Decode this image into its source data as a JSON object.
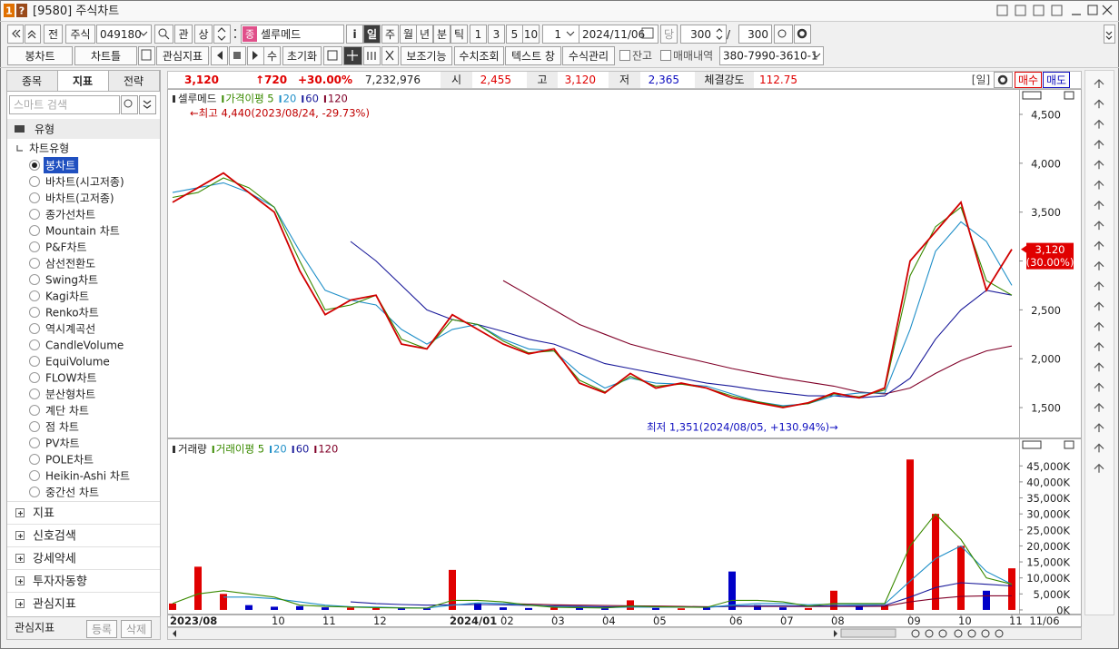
{
  "window": {
    "title": "[9580] 주식차트",
    "badges": [
      "1",
      "?"
    ]
  },
  "toolbar1": {
    "prev": "전",
    "market": "주식",
    "code": "049180",
    "buttons_a": [
      "관",
      "상"
    ],
    "code_type": "종",
    "name": "셀루메드",
    "info": "i",
    "periods": [
      "일",
      "주",
      "월",
      "년",
      "분",
      "틱"
    ],
    "units": [
      "1",
      "3",
      "5",
      "10"
    ],
    "unit_input": "1",
    "date": "2024/11/06",
    "current": "당",
    "count": "300",
    "sep": "/",
    "total": "300"
  },
  "toolbar2": {
    "chart_type": "봉차트",
    "frame": "차트틀",
    "watch": "관심지표",
    "su": "수",
    "reset": "초기화",
    "buttons": [
      "보조기능",
      "수치조회",
      "텍스트 창",
      "수식관리"
    ],
    "checks": [
      "잔고",
      "매매내역"
    ],
    "account": "380-7990-3610-1"
  },
  "sidebar": {
    "tabs": [
      "종목",
      "지표",
      "전략"
    ],
    "search": "스마트 검색",
    "group": "유형",
    "subgroup": "차트유형",
    "chart_types": [
      "봉차트",
      "바차트(시고저종)",
      "바차트(고저종)",
      "종가선차트",
      "Mountain 차트",
      "P&F차트",
      "삼선전환도",
      "Swing차트",
      "Kagi차트",
      "Renko차트",
      "역시계곡선",
      "CandleVolume",
      "EquiVolume",
      "FLOW차트",
      "분산형차트",
      "계단 차트",
      "점 차트",
      "PV차트",
      "POLE차트",
      "Heikin-Ashi 차트",
      "중간선 차트"
    ],
    "sections": [
      "지표",
      "신호검색",
      "강세약세",
      "투자자동향",
      "관심지표"
    ],
    "footer": {
      "label": "관심지표",
      "buttons": [
        "등록",
        "삭제"
      ]
    }
  },
  "quote": {
    "price": "3,120",
    "change": "↑720",
    "rate": "+30.00%",
    "volume": "7,232,976",
    "open_label": "시",
    "open": "2,455",
    "high_label": "고",
    "high": "3,120",
    "low_label": "저",
    "low": "2,365",
    "strength_label": "체결강도",
    "strength": "112.75",
    "period": "[일]",
    "buy": "매수",
    "sell": "매도"
  },
  "chart_data": [
    {
      "type": "line",
      "categories": [
        "2023/08",
        null,
        null,
        null,
        "10",
        null,
        "11",
        null,
        "12",
        null,
        null,
        "2024/01",
        null,
        "02",
        null,
        "03",
        null,
        "04",
        null,
        "05",
        null,
        null,
        "06",
        null,
        "07",
        null,
        "08",
        null,
        null,
        "09",
        null,
        "10",
        null,
        "11"
      ],
      "x_end_label": "11/06",
      "series": [
        {
          "name": "셀루메드",
          "color": "#d00000",
          "values": [
            3600,
            3750,
            3900,
            3700,
            3500,
            2900,
            2450,
            2600,
            2650,
            2150,
            2100,
            2450,
            2300,
            2150,
            2050,
            2100,
            1750,
            1650,
            1850,
            1700,
            1750,
            1700,
            1600,
            1550,
            1500,
            1550,
            1650,
            1600,
            1700,
            3000,
            3300,
            3600,
            2700,
            3120
          ]
        },
        {
          "name": "가격이평 5",
          "color": "#3a8a00",
          "values": [
            3650,
            3700,
            3850,
            3750,
            3550,
            3000,
            2500,
            2550,
            2650,
            2200,
            2100,
            2400,
            2350,
            2180,
            2060,
            2080,
            1780,
            1660,
            1820,
            1720,
            1740,
            1700,
            1620,
            1560,
            1510,
            1540,
            1640,
            1610,
            1680,
            2850,
            3350,
            3550,
            2800,
            2650
          ]
        },
        {
          "name": "20",
          "color": "#1f8fc8",
          "values": [
            3700,
            3750,
            3800,
            3700,
            3550,
            3100,
            2700,
            2600,
            2550,
            2300,
            2150,
            2300,
            2350,
            2200,
            2100,
            2080,
            1850,
            1700,
            1800,
            1750,
            1740,
            1720,
            1640,
            1560,
            1520,
            1540,
            1620,
            1650,
            1650,
            2300,
            3100,
            3400,
            3200,
            2750
          ]
        },
        {
          "name": "60",
          "color": "#1a1a9a",
          "values": [
            null,
            null,
            null,
            null,
            null,
            null,
            null,
            3200,
            3000,
            2750,
            2500,
            2400,
            2350,
            2280,
            2200,
            2150,
            2050,
            1950,
            1900,
            1850,
            1800,
            1750,
            1720,
            1680,
            1650,
            1620,
            1620,
            1600,
            1620,
            1800,
            2200,
            2500,
            2700,
            2650
          ]
        },
        {
          "name": "120",
          "color": "#800028",
          "values": [
            null,
            null,
            null,
            null,
            null,
            null,
            null,
            null,
            null,
            null,
            null,
            null,
            null,
            2800,
            2650,
            2500,
            2350,
            2250,
            2150,
            2080,
            2020,
            1960,
            1900,
            1850,
            1800,
            1760,
            1720,
            1660,
            1640,
            1700,
            1850,
            1980,
            2080,
            2130
          ]
        }
      ],
      "ylim": [
        1194,
        4760
      ],
      "yticks": [
        {
          "value": 1500,
          "label": "1,500"
        },
        {
          "value": 2000,
          "label": "2,000"
        },
        {
          "value": 2500,
          "label": "2,500"
        },
        {
          "value": 3000,
          "label": "3,000"
        },
        {
          "value": 3500,
          "label": "3,500"
        },
        {
          "value": 4000,
          "label": "4,000"
        },
        {
          "value": 4500,
          "label": "4,500"
        }
      ],
      "annotations": [
        {
          "text": "←최고 4,440(2023/08/24, -29.73%)",
          "color": "#c00000"
        },
        {
          "text": "최저 1,351(2024/08/05, +130.94%)→",
          "color": "#1010c0"
        }
      ],
      "current_label": [
        "3,120",
        "(30.00%)"
      ],
      "grid": false
    },
    {
      "type": "bar",
      "series": [
        {
          "name": "거래량",
          "color": "#e00000",
          "down_color": "#0000c8",
          "values": [
            2000,
            13500,
            5000,
            1500,
            1000,
            1200,
            800,
            700,
            600,
            500,
            500,
            12500,
            2000,
            800,
            600,
            700,
            900,
            500,
            3000,
            600,
            500,
            700,
            12000,
            1500,
            800,
            600,
            6000,
            1000,
            1500,
            47000,
            30000,
            20000,
            6000,
            13000
          ]
        },
        {
          "name": "거래이평 5",
          "color": "#3a8a00",
          "values": [
            2000,
            5000,
            6000,
            5000,
            4000,
            1500,
            1100,
            900,
            700,
            600,
            550,
            3000,
            3000,
            2500,
            1500,
            800,
            700,
            600,
            1200,
            1000,
            900,
            800,
            3000,
            3000,
            2500,
            1200,
            2000,
            2000,
            2000,
            20000,
            30000,
            22000,
            10000,
            8000
          ]
        },
        {
          "name": "20",
          "color": "#1f8fc8",
          "values": [
            null,
            null,
            4000,
            4000,
            3500,
            2500,
            1500,
            1000,
            900,
            700,
            600,
            1500,
            2200,
            2000,
            1600,
            1000,
            800,
            700,
            900,
            900,
            850,
            800,
            1500,
            2000,
            2000,
            1600,
            1800,
            1700,
            1800,
            9000,
            16000,
            20000,
            12000,
            8000
          ]
        },
        {
          "name": "60",
          "color": "#1a1a9a",
          "values": [
            null,
            null,
            null,
            null,
            null,
            null,
            null,
            2500,
            2000,
            1700,
            1500,
            1600,
            1700,
            1600,
            1400,
            1200,
            1100,
            1000,
            1000,
            900,
            900,
            850,
            1200,
            1300,
            1300,
            1200,
            1300,
            1300,
            1400,
            4000,
            7000,
            8500,
            8000,
            7500
          ]
        },
        {
          "name": "120",
          "color": "#800028",
          "values": [
            null,
            null,
            null,
            null,
            null,
            null,
            null,
            null,
            null,
            null,
            null,
            null,
            null,
            2000,
            1800,
            1600,
            1500,
            1400,
            1300,
            1200,
            1100,
            1000,
            1100,
            1100,
            1100,
            1050,
            1100,
            1100,
            1150,
            2500,
            3500,
            4200,
            4400,
            4400
          ]
        }
      ],
      "ylim": [
        -1150,
        53300
      ],
      "yticks": [
        {
          "value": 0,
          "label": "0K"
        },
        {
          "value": 5000,
          "label": "5,000K"
        },
        {
          "value": 10000,
          "label": "10,000K"
        },
        {
          "value": 15000,
          "label": "15,000K"
        },
        {
          "value": 20000,
          "label": "20,000K"
        },
        {
          "value": 25000,
          "label": "25,000K"
        },
        {
          "value": 30000,
          "label": "30,000K"
        },
        {
          "value": 35000,
          "label": "35,000K"
        },
        {
          "value": 40000,
          "label": "40,000K"
        },
        {
          "value": 45000,
          "label": "45,000K"
        }
      ],
      "grid": false
    }
  ]
}
